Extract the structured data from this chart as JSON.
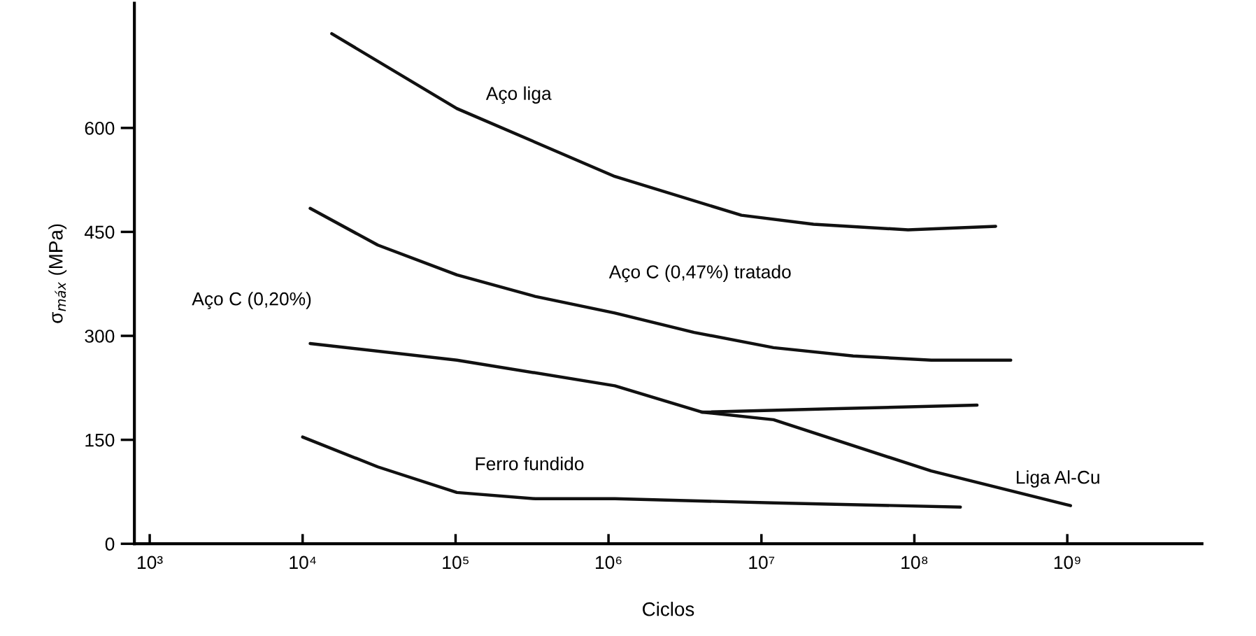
{
  "chart_data": {
    "type": "line",
    "xlabel": "Ciclos",
    "ylabel": "σ$_{máx}$ (MPa)",
    "log": "x",
    "grid": false,
    "legend": false,
    "marker": "none",
    "line_style": "solid",
    "xlim": [
      794,
      7600000000
    ],
    "xticks": [
      {
        "value": 1000,
        "label": "10³"
      },
      {
        "value": 10000,
        "label": "10⁴"
      },
      {
        "value": 100000,
        "label": "10⁵"
      },
      {
        "value": 1000000,
        "label": "10⁶"
      },
      {
        "value": 10000000,
        "label": "10⁷"
      },
      {
        "value": 100000000,
        "label": "10⁸"
      },
      {
        "value": 1000000000,
        "label": "10⁹"
      }
    ],
    "ylim": [
      0,
      780
    ],
    "yticks": [
      0,
      150,
      300,
      450,
      600
    ],
    "series": [
      {
        "name": "Aço liga",
        "color": "#111111",
        "x": [
          15500,
          102000,
          1100000,
          7400000,
          21900000,
          91000000,
          340000000
        ],
        "values": [
          736,
          628,
          530,
          474,
          461,
          453,
          458
        ]
      },
      {
        "name": "Aço C (0,47%) tratado",
        "color": "#111111",
        "x": [
          11200,
          31000,
          102000,
          331000,
          1100000,
          3630000,
          12000000,
          39800000,
          129000000,
          427000000
        ],
        "values": [
          484,
          431,
          388,
          357,
          333,
          305,
          283,
          271,
          265,
          265
        ]
      },
      {
        "name": "Aço C (0,20%)",
        "color": "#111111",
        "x": [
          11200,
          102000,
          1100000,
          4070000,
          31600000,
          257000000
        ],
        "values": [
          289,
          265,
          228,
          190,
          195,
          200
        ]
      },
      {
        "name": "Ferro fundido",
        "color": "#111111",
        "x": [
          10000,
          31000,
          102000,
          331000,
          1100000,
          12000000,
          200000000
        ],
        "values": [
          154,
          111,
          74,
          65,
          65,
          59,
          53
        ]
      },
      {
        "name": "Liga Al-Cu",
        "color": "#111111",
        "x": [
          4070000,
          12000000,
          129000000,
          1050000000
        ],
        "values": [
          190,
          179,
          105,
          55
        ]
      }
    ]
  }
}
